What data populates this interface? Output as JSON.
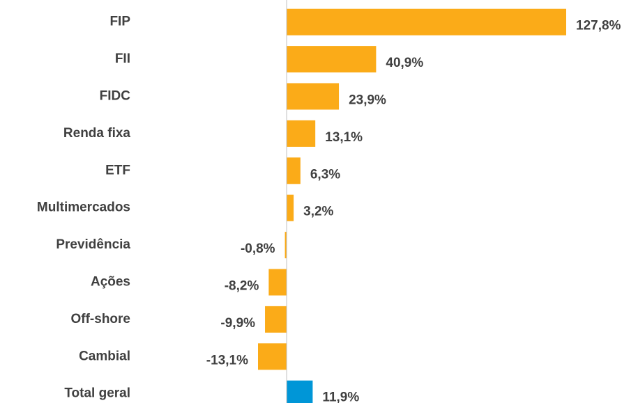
{
  "chart_data": {
    "type": "bar",
    "orientation": "horizontal",
    "categories": [
      "FIP",
      "FII",
      "FIDC",
      "Renda fixa",
      "ETF",
      "Multimercados",
      "Previdência",
      "Ações",
      "Off-shore",
      "Cambial",
      "Total geral"
    ],
    "values": [
      127.8,
      40.9,
      23.9,
      13.1,
      6.3,
      3.2,
      -0.8,
      -8.2,
      -9.9,
      -13.1,
      11.9
    ],
    "value_labels": [
      "127,8%",
      "40,9%",
      "23,9%",
      "13,1%",
      "6,3%",
      "3,2%",
      "-0,8%",
      "-8,2%",
      "-9,9%",
      "-13,1%",
      "11,9%"
    ],
    "colors": [
      "#fbab18",
      "#fbab18",
      "#fbab18",
      "#fbab18",
      "#fbab18",
      "#fbab18",
      "#fbab18",
      "#fbab18",
      "#fbab18",
      "#fbab18",
      "#0096d7"
    ]
  }
}
